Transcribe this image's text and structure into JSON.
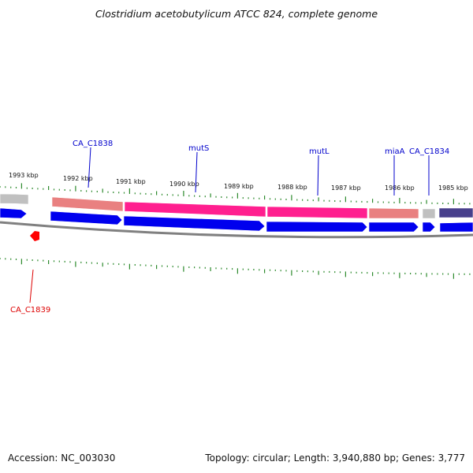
{
  "title": "Clostridium acetobutylicum ATCC 824, complete genome",
  "footer": {
    "accession": "Accession: NC_003030",
    "summary": "Topology: circular; Length: 3,940,880 bp; Genes: 3,777"
  },
  "colors": {
    "backbone": "#808080",
    "tick": "#2e8b2e",
    "forward_cds": "#0000ee",
    "named_gene": "#ff1f8f",
    "light_gene": "#e98080",
    "grey_gene": "#c0c0c0",
    "indigo_gene": "#48408c",
    "reverse_marker": "#ff0000",
    "label_blue": "#0000cc",
    "label_red": "#dd0000"
  },
  "scale_labels": [
    "1993 kbp",
    "1992 kbp",
    "1991 kbp",
    "1990 kbp",
    "1989 kbp",
    "1988 kbp",
    "1987 kbp",
    "1986 kbp",
    "1985 kbp"
  ],
  "feature_labels": [
    {
      "text": "CA_C1838",
      "color": "blue"
    },
    {
      "text": "mutS",
      "color": "blue"
    },
    {
      "text": "mutL",
      "color": "blue"
    },
    {
      "text": "miaA",
      "color": "blue"
    },
    {
      "text": "CA_C1834",
      "color": "blue"
    },
    {
      "text": "CA_C1839",
      "color": "red"
    }
  ]
}
